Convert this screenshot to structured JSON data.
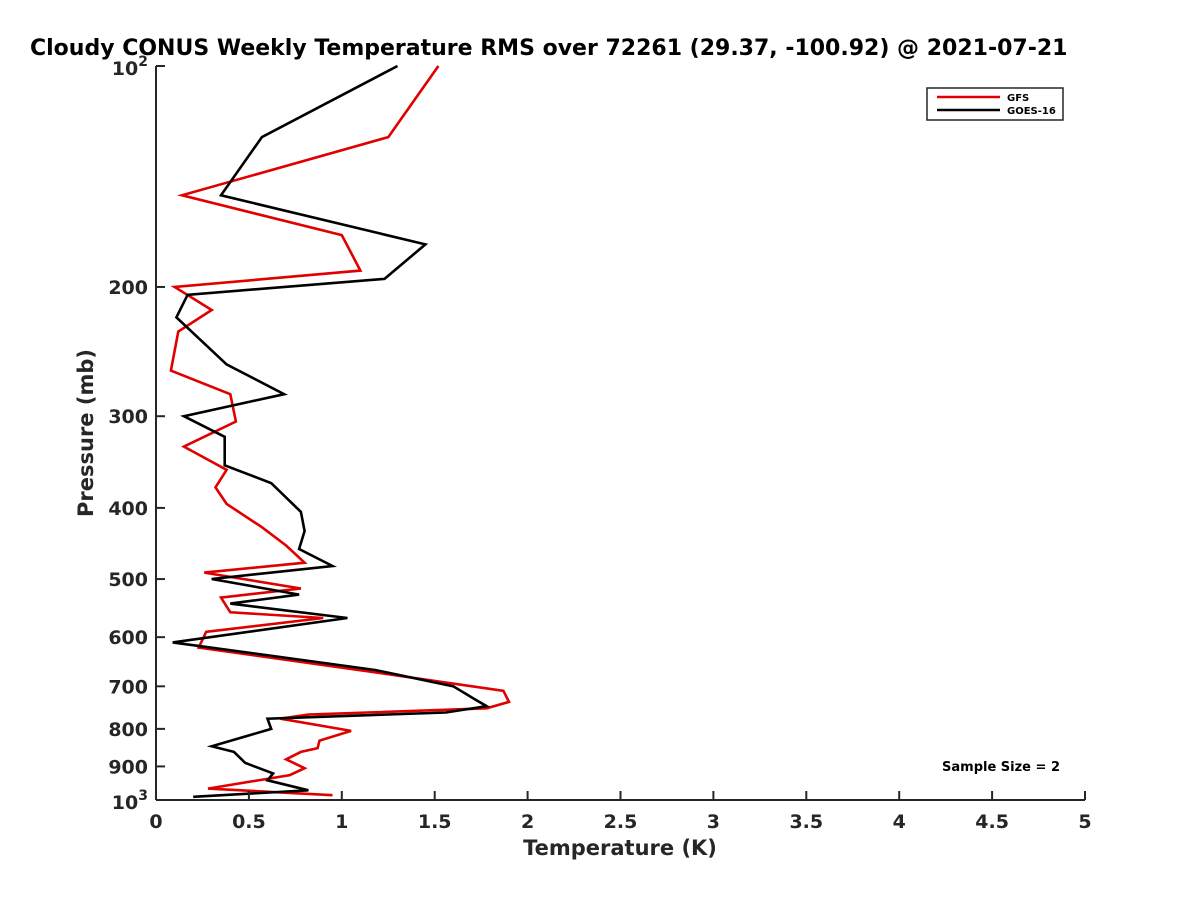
{
  "chart_data": {
    "type": "line",
    "title": "Cloudy CONUS Weekly Temperature RMS over 72261 (29.37, -100.92) @ 2021-07-21",
    "xlabel": "Temperature (K)",
    "ylabel": "Pressure (mb)",
    "xlim": [
      0,
      5
    ],
    "ylim": [
      100,
      1000
    ],
    "y_scale": "log",
    "y_reversed": true,
    "grid": false,
    "legend_position": "top-right",
    "x_ticks": [
      "0",
      "0.5",
      "1",
      "1.5",
      "2",
      "2.5",
      "3",
      "3.5",
      "4",
      "4.5",
      "5"
    ],
    "y_ticks": [
      {
        "value": 100,
        "label": "10",
        "exp": "2"
      },
      {
        "value": 200,
        "label": "200"
      },
      {
        "value": 300,
        "label": "300"
      },
      {
        "value": 400,
        "label": "400"
      },
      {
        "value": 500,
        "label": "500"
      },
      {
        "value": 600,
        "label": "600"
      },
      {
        "value": 700,
        "label": "700"
      },
      {
        "value": 800,
        "label": "800"
      },
      {
        "value": 900,
        "label": "900"
      },
      {
        "value": 1000,
        "label": "10",
        "exp": "3"
      }
    ],
    "series": [
      {
        "name": "GFS",
        "color": "#e00000",
        "points": [
          [
            1.52,
            100
          ],
          [
            1.25,
            125
          ],
          [
            0.14,
            150
          ],
          [
            1.0,
            170
          ],
          [
            1.1,
            190
          ],
          [
            0.1,
            200
          ],
          [
            0.3,
            215
          ],
          [
            0.12,
            230
          ],
          [
            0.08,
            260
          ],
          [
            0.4,
            280
          ],
          [
            0.43,
            305
          ],
          [
            0.15,
            330
          ],
          [
            0.38,
            355
          ],
          [
            0.32,
            375
          ],
          [
            0.38,
            395
          ],
          [
            0.57,
            425
          ],
          [
            0.7,
            450
          ],
          [
            0.8,
            475
          ],
          [
            0.26,
            490
          ],
          [
            0.78,
            515
          ],
          [
            0.35,
            530
          ],
          [
            0.4,
            555
          ],
          [
            0.9,
            565
          ],
          [
            0.27,
            590
          ],
          [
            0.23,
            620
          ],
          [
            1.18,
            670
          ],
          [
            1.87,
            710
          ],
          [
            1.9,
            735
          ],
          [
            1.78,
            750
          ],
          [
            0.82,
            765
          ],
          [
            0.67,
            775
          ],
          [
            1.05,
            805
          ],
          [
            0.88,
            830
          ],
          [
            0.87,
            850
          ],
          [
            0.78,
            860
          ],
          [
            0.7,
            880
          ],
          [
            0.8,
            905
          ],
          [
            0.72,
            925
          ],
          [
            0.28,
            965
          ],
          [
            0.95,
            985
          ]
        ]
      },
      {
        "name": "GOES-16",
        "color": "#000000",
        "points": [
          [
            1.3,
            100
          ],
          [
            0.57,
            125
          ],
          [
            0.35,
            150
          ],
          [
            1.45,
            175
          ],
          [
            1.23,
            195
          ],
          [
            0.17,
            205
          ],
          [
            0.11,
            220
          ],
          [
            0.38,
            255
          ],
          [
            0.69,
            280
          ],
          [
            0.15,
            300
          ],
          [
            0.37,
            320
          ],
          [
            0.37,
            350
          ],
          [
            0.62,
            370
          ],
          [
            0.78,
            405
          ],
          [
            0.8,
            430
          ],
          [
            0.77,
            455
          ],
          [
            0.95,
            480
          ],
          [
            0.3,
            500
          ],
          [
            0.77,
            525
          ],
          [
            0.4,
            540
          ],
          [
            1.03,
            565
          ],
          [
            0.09,
            610
          ],
          [
            1.18,
            665
          ],
          [
            1.6,
            700
          ],
          [
            1.72,
            730
          ],
          [
            1.78,
            745
          ],
          [
            1.56,
            760
          ],
          [
            0.6,
            775
          ],
          [
            0.62,
            800
          ],
          [
            0.3,
            845
          ],
          [
            0.42,
            860
          ],
          [
            0.48,
            890
          ],
          [
            0.63,
            920
          ],
          [
            0.6,
            940
          ],
          [
            0.82,
            970
          ],
          [
            0.2,
            990
          ]
        ]
      }
    ],
    "annotation": "Sample Size = 2"
  }
}
